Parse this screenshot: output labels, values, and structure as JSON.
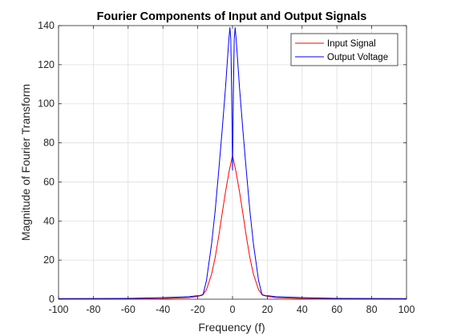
{
  "chart_data": {
    "type": "line",
    "title": "Fourier Components of Input and Output Signals",
    "xlabel": "Frequency (f)",
    "ylabel": "Magnitude of Fourier Transform",
    "xlim": [
      -100,
      100
    ],
    "ylim": [
      0,
      140
    ],
    "xticks": [
      -100,
      -80,
      -60,
      -40,
      -20,
      0,
      20,
      40,
      60,
      80,
      100
    ],
    "yticks": [
      0,
      20,
      40,
      60,
      80,
      100,
      120,
      140
    ],
    "xtick_labels": [
      "-100",
      "-80",
      "-60",
      "-40",
      "-20",
      "0",
      "20",
      "40",
      "60",
      "80",
      "100"
    ],
    "ytick_labels": [
      "0",
      "20",
      "40",
      "60",
      "80",
      "100",
      "120",
      "140"
    ],
    "grid": true,
    "legend_position": "top-right",
    "series": [
      {
        "name": "Input Signal",
        "color": "#ff0000",
        "x": [
          -100,
          -60,
          -40,
          -25,
          -20,
          -17,
          -15,
          -12,
          -10,
          -8,
          -6,
          -4,
          -2,
          0,
          2,
          4,
          6,
          8,
          10,
          12,
          15,
          17,
          20,
          25,
          40,
          60,
          100
        ],
        "y": [
          0.1,
          0.2,
          0.3,
          0.8,
          1.5,
          2.4,
          4.8,
          12.9,
          21.2,
          31.8,
          43.6,
          55.1,
          65.2,
          73.6,
          65.2,
          55.1,
          43.6,
          31.8,
          21.2,
          12.9,
          4.8,
          2.4,
          1.5,
          0.8,
          0.3,
          0.2,
          0.1
        ]
      },
      {
        "name": "Output Voltage",
        "color": "#0000ff",
        "x": [
          -100,
          -60,
          -40,
          -25,
          -22,
          -20,
          -19,
          -17,
          -15,
          -12,
          -10,
          -8,
          -6,
          -4,
          -2.5,
          -2,
          -1.5,
          -1,
          -0.5,
          0,
          0.5,
          1,
          1.5,
          2,
          2.5,
          4,
          6,
          8,
          10,
          12,
          15,
          17,
          19,
          20,
          22,
          25,
          40,
          60,
          100
        ],
        "y": [
          0.3,
          0.4,
          0.8,
          1.3,
          1.6,
          1.8,
          1.7,
          2.2,
          9.4,
          28.5,
          45,
          65,
          86,
          108.5,
          128,
          134,
          139,
          133,
          106,
          66,
          106,
          133,
          139,
          134,
          128,
          108.5,
          86,
          65,
          45,
          28.5,
          9.4,
          2.2,
          1.7,
          1.8,
          1.6,
          1.3,
          0.8,
          0.4,
          0.3
        ]
      }
    ]
  }
}
